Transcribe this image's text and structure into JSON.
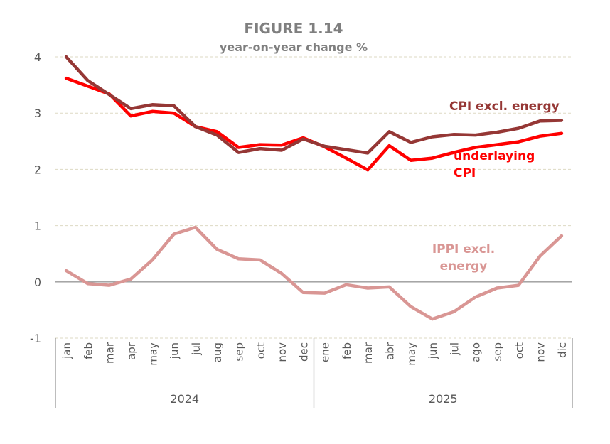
{
  "chart_data": {
    "type": "line",
    "title": "FIGURE 1.14",
    "subtitle": "year-on-year change %",
    "xlabel": "",
    "ylabel": "",
    "ylim": [
      -1,
      4
    ],
    "yticks": [
      -1,
      0,
      1,
      2,
      3,
      4
    ],
    "grid": true,
    "categories": [
      "jan",
      "feb",
      "mar",
      "apr",
      "may",
      "jun",
      "jul",
      "aug",
      "sep",
      "oct",
      "nov",
      "dec",
      "ene",
      "feb",
      "mar",
      "abr",
      "may",
      "jun",
      "jul",
      "ago",
      "sep",
      "oct",
      "nov",
      "dic"
    ],
    "groups": [
      {
        "label": "2024",
        "count": 12
      },
      {
        "label": "2025",
        "count": 12
      }
    ],
    "series": [
      {
        "name": "CPI excl. energy",
        "color": "#953735",
        "values": [
          4.0,
          3.58,
          3.33,
          3.08,
          3.15,
          3.13,
          2.76,
          2.61,
          2.3,
          2.37,
          2.34,
          2.54,
          2.41,
          2.35,
          2.29,
          2.67,
          2.48,
          2.58,
          2.62,
          2.61,
          2.66,
          2.73,
          2.86,
          2.87
        ]
      },
      {
        "name": "underlaying CPI",
        "color": "#ff0000",
        "values": [
          3.62,
          3.48,
          3.34,
          2.95,
          3.03,
          3.0,
          2.76,
          2.67,
          2.39,
          2.44,
          2.43,
          2.56,
          2.4,
          2.2,
          1.99,
          2.42,
          2.16,
          2.2,
          2.3,
          2.39,
          2.44,
          2.49,
          2.59,
          2.64
        ]
      },
      {
        "name": "IPPI excl. energy",
        "color": "#d99694",
        "values": [
          0.2,
          -0.03,
          -0.06,
          0.05,
          0.39,
          0.85,
          0.97,
          0.58,
          0.41,
          0.39,
          0.15,
          -0.19,
          -0.2,
          -0.05,
          -0.11,
          -0.09,
          -0.44,
          -0.66,
          -0.53,
          -0.27,
          -0.11,
          -0.06,
          0.46,
          0.82
        ]
      }
    ],
    "labels": {
      "cpi_excl": "CPI excl. energy",
      "underlying_1": "underlaying",
      "underlying_2": "CPI",
      "ippi_1": "IPPI excl.",
      "ippi_2": "energy"
    }
  }
}
